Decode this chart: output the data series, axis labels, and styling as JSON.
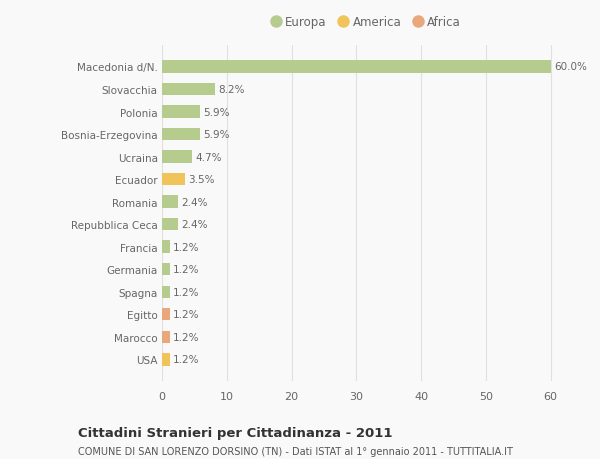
{
  "categories": [
    "Macedonia d/N.",
    "Slovacchia",
    "Polonia",
    "Bosnia-Erzegovina",
    "Ucraina",
    "Ecuador",
    "Romania",
    "Repubblica Ceca",
    "Francia",
    "Germania",
    "Spagna",
    "Egitto",
    "Marocco",
    "USA"
  ],
  "values": [
    60.0,
    8.2,
    5.9,
    5.9,
    4.7,
    3.5,
    2.4,
    2.4,
    1.2,
    1.2,
    1.2,
    1.2,
    1.2,
    1.2
  ],
  "continents": [
    "Europa",
    "Europa",
    "Europa",
    "Europa",
    "Europa",
    "America",
    "Europa",
    "Europa",
    "Europa",
    "Europa",
    "Europa",
    "Africa",
    "Africa",
    "America"
  ],
  "colors": {
    "Europa": "#b5cc8e",
    "America": "#f0c45a",
    "Africa": "#e8a87c"
  },
  "legend_order": [
    "Europa",
    "America",
    "Africa"
  ],
  "legend_colors": [
    "#b5cc8e",
    "#f0c45a",
    "#e8a87c"
  ],
  "xlim": [
    0,
    63
  ],
  "xticks": [
    0,
    10,
    20,
    30,
    40,
    50,
    60
  ],
  "title": "Cittadini Stranieri per Cittadinanza - 2011",
  "subtitle": "COMUNE DI SAN LORENZO DORSINO (TN) - Dati ISTAT al 1° gennaio 2011 - TUTTITALIA.IT",
  "bg_color": "#f9f9f9",
  "grid_color": "#e0e0e0",
  "label_color": "#666666",
  "bar_label_color": "#666666"
}
